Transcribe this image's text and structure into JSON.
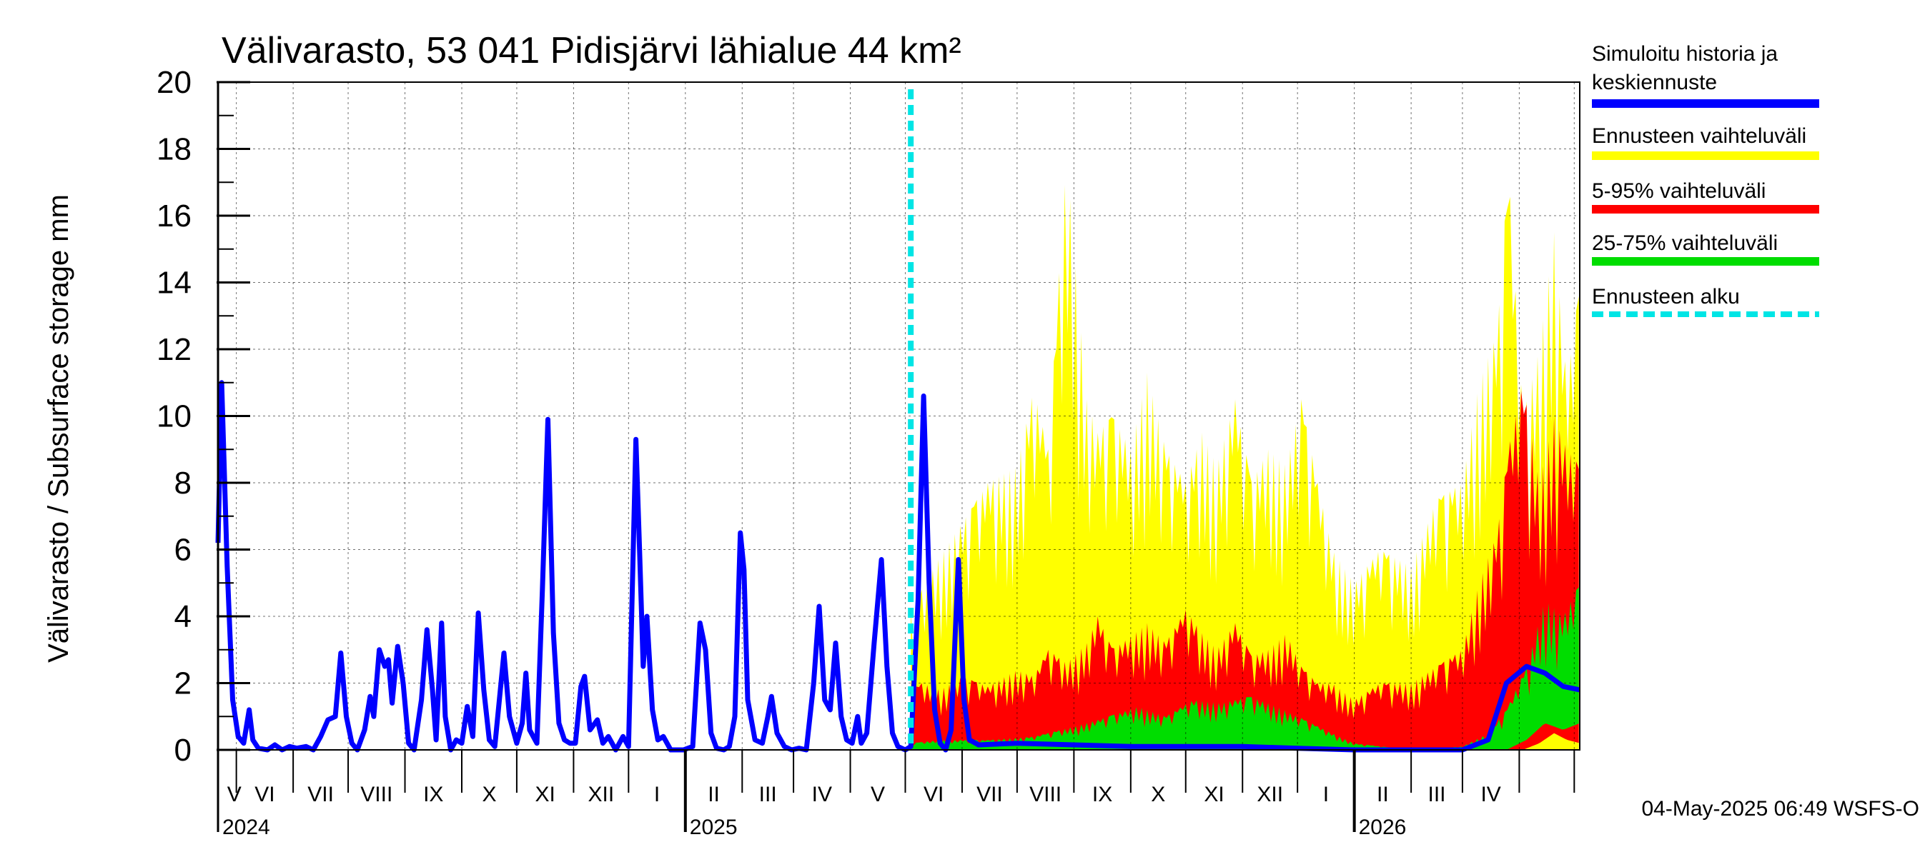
{
  "chart_data": {
    "type": "area",
    "title": "Välivarasto, 53 041 Pidisjärvi lähialue 44 km²",
    "ylabel": "Välivarasto / Subsurface storage  mm",
    "ylim": [
      0,
      20
    ],
    "yticks": [
      0,
      2,
      4,
      6,
      8,
      10,
      12,
      14,
      16,
      18,
      20
    ],
    "x_start": "2024-04-21",
    "x_end": "2026-05-04",
    "forecast_start": "2025-05-04",
    "grid": true,
    "legend_position": "right",
    "month_labels": [
      "V",
      "VI",
      "VII",
      "VIII",
      "IX",
      "X",
      "XI",
      "XII",
      "I",
      "II",
      "III",
      "IV",
      "V",
      "VI",
      "VII",
      "VIII",
      "IX",
      "X",
      "XI",
      "XII",
      "I",
      "II",
      "III",
      "IV"
    ],
    "year_labels": [
      {
        "date": "2024-04-21",
        "label": "2024"
      },
      {
        "date": "2025-01-01",
        "label": "2025"
      },
      {
        "date": "2026-01-01",
        "label": "2026"
      }
    ],
    "series": [
      {
        "name": "Simuloitu historia ja keskiennuste",
        "color": "#0000ff",
        "points": [
          [
            "2024-04-21",
            6.2
          ],
          [
            "2024-04-23",
            11.0
          ],
          [
            "2024-04-26",
            5.5
          ],
          [
            "2024-04-29",
            1.5
          ],
          [
            "2024-05-02",
            0.4
          ],
          [
            "2024-05-05",
            0.2
          ],
          [
            "2024-05-08",
            1.2
          ],
          [
            "2024-05-10",
            0.3
          ],
          [
            "2024-05-13",
            0.05
          ],
          [
            "2024-05-18",
            0.0
          ],
          [
            "2024-05-22",
            0.15
          ],
          [
            "2024-05-26",
            0.0
          ],
          [
            "2024-05-30",
            0.1
          ],
          [
            "2024-06-03",
            0.05
          ],
          [
            "2024-06-08",
            0.1
          ],
          [
            "2024-06-12",
            0.0
          ],
          [
            "2024-06-16",
            0.4
          ],
          [
            "2024-06-20",
            0.9
          ],
          [
            "2024-06-24",
            1.0
          ],
          [
            "2024-06-27",
            2.9
          ],
          [
            "2024-06-30",
            1.0
          ],
          [
            "2024-07-03",
            0.2
          ],
          [
            "2024-07-06",
            0.0
          ],
          [
            "2024-07-10",
            0.6
          ],
          [
            "2024-07-13",
            1.6
          ],
          [
            "2024-07-15",
            1.0
          ],
          [
            "2024-07-18",
            3.0
          ],
          [
            "2024-07-21",
            2.5
          ],
          [
            "2024-07-23",
            2.7
          ],
          [
            "2024-07-25",
            1.4
          ],
          [
            "2024-07-28",
            3.1
          ],
          [
            "2024-07-31",
            2.0
          ],
          [
            "2024-08-03",
            0.2
          ],
          [
            "2024-08-06",
            0.0
          ],
          [
            "2024-08-10",
            1.5
          ],
          [
            "2024-08-13",
            3.6
          ],
          [
            "2024-08-16",
            1.8
          ],
          [
            "2024-08-18",
            0.3
          ],
          [
            "2024-08-21",
            3.8
          ],
          [
            "2024-08-23",
            1.0
          ],
          [
            "2024-08-26",
            0.0
          ],
          [
            "2024-08-29",
            0.3
          ],
          [
            "2024-09-01",
            0.2
          ],
          [
            "2024-09-04",
            1.3
          ],
          [
            "2024-09-07",
            0.4
          ],
          [
            "2024-09-10",
            4.1
          ],
          [
            "2024-09-13",
            1.8
          ],
          [
            "2024-09-16",
            0.3
          ],
          [
            "2024-09-19",
            0.1
          ],
          [
            "2024-09-24",
            2.9
          ],
          [
            "2024-09-27",
            1.0
          ],
          [
            "2024-10-01",
            0.2
          ],
          [
            "2024-10-04",
            0.8
          ],
          [
            "2024-10-06",
            2.3
          ],
          [
            "2024-10-08",
            0.6
          ],
          [
            "2024-10-12",
            0.2
          ],
          [
            "2024-10-15",
            4.8
          ],
          [
            "2024-10-18",
            9.9
          ],
          [
            "2024-10-21",
            3.5
          ],
          [
            "2024-10-24",
            0.8
          ],
          [
            "2024-10-27",
            0.3
          ],
          [
            "2024-10-30",
            0.2
          ],
          [
            "2024-11-02",
            0.2
          ],
          [
            "2024-11-05",
            1.9
          ],
          [
            "2024-11-07",
            2.2
          ],
          [
            "2024-11-10",
            0.6
          ],
          [
            "2024-11-14",
            0.9
          ],
          [
            "2024-11-17",
            0.2
          ],
          [
            "2024-11-20",
            0.4
          ],
          [
            "2024-11-24",
            0.0
          ],
          [
            "2024-11-28",
            0.4
          ],
          [
            "2024-12-01",
            0.1
          ],
          [
            "2024-12-05",
            9.3
          ],
          [
            "2024-12-07",
            6.0
          ],
          [
            "2024-12-09",
            2.5
          ],
          [
            "2024-12-11",
            4.0
          ],
          [
            "2024-12-14",
            1.2
          ],
          [
            "2024-12-17",
            0.3
          ],
          [
            "2024-12-20",
            0.4
          ],
          [
            "2024-12-24",
            0.0
          ],
          [
            "2024-12-31",
            0.0
          ],
          [
            "2025-01-05",
            0.1
          ],
          [
            "2025-01-09",
            3.8
          ],
          [
            "2025-01-12",
            3.0
          ],
          [
            "2025-01-15",
            0.5
          ],
          [
            "2025-01-18",
            0.05
          ],
          [
            "2025-01-22",
            0.0
          ],
          [
            "2025-01-25",
            0.1
          ],
          [
            "2025-01-28",
            1.0
          ],
          [
            "2025-01-31",
            6.5
          ],
          [
            "2025-02-02",
            5.4
          ],
          [
            "2025-02-04",
            1.5
          ],
          [
            "2025-02-08",
            0.3
          ],
          [
            "2025-02-12",
            0.2
          ],
          [
            "2025-02-15",
            1.0
          ],
          [
            "2025-02-17",
            1.6
          ],
          [
            "2025-02-20",
            0.5
          ],
          [
            "2025-02-24",
            0.1
          ],
          [
            "2025-02-28",
            0.0
          ],
          [
            "2025-03-04",
            0.05
          ],
          [
            "2025-03-08",
            0.0
          ],
          [
            "2025-03-12",
            2.0
          ],
          [
            "2025-03-15",
            4.3
          ],
          [
            "2025-03-18",
            1.5
          ],
          [
            "2025-03-21",
            1.2
          ],
          [
            "2025-03-24",
            3.2
          ],
          [
            "2025-03-27",
            1.0
          ],
          [
            "2025-03-30",
            0.3
          ],
          [
            "2025-04-02",
            0.2
          ],
          [
            "2025-04-05",
            1.0
          ],
          [
            "2025-04-07",
            0.2
          ],
          [
            "2025-04-10",
            0.5
          ],
          [
            "2025-04-14",
            3.2
          ],
          [
            "2025-04-18",
            5.7
          ],
          [
            "2025-04-21",
            2.5
          ],
          [
            "2025-04-24",
            0.5
          ],
          [
            "2025-04-27",
            0.1
          ],
          [
            "2025-05-01",
            0.0
          ],
          [
            "2025-05-04",
            0.1
          ],
          [
            "2025-05-08",
            4.5
          ],
          [
            "2025-05-11",
            10.6
          ],
          [
            "2025-05-14",
            5.0
          ],
          [
            "2025-05-17",
            1.2
          ],
          [
            "2025-05-20",
            0.2
          ],
          [
            "2025-05-23",
            0.0
          ],
          [
            "2025-05-26",
            0.6
          ],
          [
            "2025-05-30",
            5.7
          ],
          [
            "2025-06-02",
            1.5
          ],
          [
            "2025-06-05",
            0.3
          ],
          [
            "2025-06-10",
            0.15
          ],
          [
            "2025-07-01",
            0.2
          ],
          [
            "2025-08-01",
            0.15
          ],
          [
            "2025-09-01",
            0.1
          ],
          [
            "2025-10-01",
            0.1
          ],
          [
            "2025-11-01",
            0.1
          ],
          [
            "2025-12-01",
            0.05
          ],
          [
            "2026-01-01",
            0.0
          ],
          [
            "2026-02-01",
            0.0
          ],
          [
            "2026-03-01",
            0.0
          ],
          [
            "2026-03-15",
            0.3
          ],
          [
            "2026-03-25",
            2.0
          ],
          [
            "2026-04-05",
            2.5
          ],
          [
            "2026-04-15",
            2.3
          ],
          [
            "2026-04-25",
            1.9
          ],
          [
            "2026-05-04",
            1.8
          ]
        ]
      },
      {
        "name": "Ennusteen vaihteluväli",
        "color": "#ffff00",
        "x": [
          "2025-05-04",
          "2025-05-10",
          "2025-05-20",
          "2025-06-01",
          "2025-06-15",
          "2025-07-01",
          "2025-07-10",
          "2025-07-18",
          "2025-07-28",
          "2025-08-08",
          "2025-08-14",
          "2025-08-22",
          "2025-09-01",
          "2025-09-10",
          "2025-09-20",
          "2025-10-01",
          "2025-10-10",
          "2025-10-18",
          "2025-10-28",
          "2025-11-06",
          "2025-11-15",
          "2025-11-25",
          "2025-12-03",
          "2025-12-12",
          "2025-12-20",
          "2026-01-01",
          "2026-01-15",
          "2026-02-01",
          "2026-02-15",
          "2026-03-01",
          "2026-03-10",
          "2026-03-20",
          "2026-03-26",
          "2026-04-03",
          "2026-04-12",
          "2026-04-20",
          "2026-04-27",
          "2026-05-04"
        ],
        "upper": [
          4.2,
          4.8,
          5.8,
          6.8,
          8.0,
          8.5,
          10.8,
          9.0,
          17.8,
          10.5,
          9.5,
          10.0,
          9.0,
          11.3,
          9.0,
          8.0,
          9.5,
          8.5,
          10.5,
          8.0,
          9.0,
          8.5,
          10.5,
          8.0,
          6.0,
          5.0,
          6.0,
          5.5,
          7.5,
          8.0,
          11.0,
          12.5,
          17.5,
          10.0,
          12.0,
          15.5,
          11.0,
          14.0
        ],
        "lower": [
          0.0,
          0.0,
          0.0,
          0.0,
          0.0,
          0.0,
          0.0,
          0.0,
          0.0,
          0.0,
          0.0,
          0.0,
          0.0,
          0.0,
          0.0,
          0.0,
          0.0,
          0.0,
          0.0,
          0.0,
          0.0,
          0.0,
          0.0,
          0.0,
          0.0,
          0.0,
          0.0,
          0.0,
          0.0,
          0.0,
          0.0,
          0.0,
          0.0,
          0.0,
          0.0,
          0.0,
          0.0,
          0.0
        ]
      },
      {
        "name": "5-95% vaihteluväli",
        "color": "#ff0000",
        "x": [
          "2025-05-04",
          "2025-05-10",
          "2025-05-20",
          "2025-06-01",
          "2025-06-15",
          "2025-07-01",
          "2025-07-10",
          "2025-07-18",
          "2025-07-28",
          "2025-08-08",
          "2025-08-14",
          "2025-08-22",
          "2025-09-01",
          "2025-09-10",
          "2025-09-20",
          "2025-10-01",
          "2025-10-10",
          "2025-10-18",
          "2025-10-28",
          "2025-11-06",
          "2025-11-15",
          "2025-11-25",
          "2025-12-03",
          "2025-12-12",
          "2025-12-20",
          "2026-01-01",
          "2026-01-15",
          "2026-02-01",
          "2026-02-15",
          "2026-03-01",
          "2026-03-10",
          "2026-03-20",
          "2026-03-26",
          "2026-04-03",
          "2026-04-12",
          "2026-04-20",
          "2026-04-27",
          "2026-05-04"
        ],
        "upper": [
          1.8,
          2.0,
          1.8,
          2.2,
          1.9,
          2.4,
          2.2,
          3.0,
          2.6,
          3.2,
          4.0,
          3.0,
          3.4,
          3.8,
          3.2,
          4.2,
          3.5,
          3.0,
          3.8,
          2.8,
          3.0,
          3.5,
          2.5,
          2.0,
          2.0,
          1.5,
          2.0,
          2.0,
          2.5,
          3.0,
          5.0,
          6.5,
          9.0,
          11.0,
          8.0,
          10.0,
          9.0,
          8.5
        ],
        "lower": [
          0.0,
          0.0,
          0.0,
          0.0,
          0.0,
          0.0,
          0.0,
          0.0,
          0.0,
          0.0,
          0.0,
          0.0,
          0.0,
          0.0,
          0.0,
          0.0,
          0.0,
          0.0,
          0.0,
          0.0,
          0.0,
          0.0,
          0.0,
          0.0,
          0.0,
          0.0,
          0.0,
          0.0,
          0.0,
          0.0,
          0.0,
          0.0,
          0.0,
          0.0,
          0.2,
          0.5,
          0.3,
          0.2
        ]
      },
      {
        "name": "25-75% vaihteluväli",
        "color": "#00dd00",
        "x": [
          "2025-05-04",
          "2025-05-20",
          "2025-06-15",
          "2025-07-10",
          "2025-08-01",
          "2025-08-20",
          "2025-09-05",
          "2025-09-20",
          "2025-10-05",
          "2025-10-20",
          "2025-11-05",
          "2025-11-20",
          "2025-12-05",
          "2025-12-20",
          "2026-01-01",
          "2026-02-01",
          "2026-03-01",
          "2026-03-15",
          "2026-03-25",
          "2026-04-05",
          "2026-04-15",
          "2026-04-25",
          "2026-05-04"
        ],
        "upper": [
          0.2,
          0.3,
          0.3,
          0.4,
          0.7,
          1.0,
          1.3,
          1.0,
          1.5,
          1.4,
          1.6,
          1.3,
          0.9,
          0.5,
          0.2,
          0.0,
          0.1,
          0.5,
          1.2,
          2.5,
          4.5,
          4.0,
          5.0
        ],
        "lower": [
          0.0,
          0.0,
          0.0,
          0.0,
          0.0,
          0.0,
          0.0,
          0.0,
          0.0,
          0.0,
          0.0,
          0.0,
          0.0,
          0.0,
          0.0,
          0.0,
          0.0,
          0.0,
          0.0,
          0.3,
          0.8,
          0.6,
          0.8
        ]
      }
    ],
    "legend": [
      {
        "label": "Simuloitu historia ja keskiennuste",
        "color": "#0000ff",
        "style": "solid"
      },
      {
        "label": "Ennusteen vaihteluväli",
        "color": "#ffff00",
        "style": "solid"
      },
      {
        "label": "5-95% vaihteluväli",
        "color": "#ff0000",
        "style": "solid"
      },
      {
        "label": "25-75% vaihteluväli",
        "color": "#00dd00",
        "style": "solid"
      },
      {
        "label": "Ennusteen alku",
        "color": "#00e5e5",
        "style": "dashed"
      }
    ],
    "timestamp": "04-May-2025 06:49 WSFS-O"
  }
}
